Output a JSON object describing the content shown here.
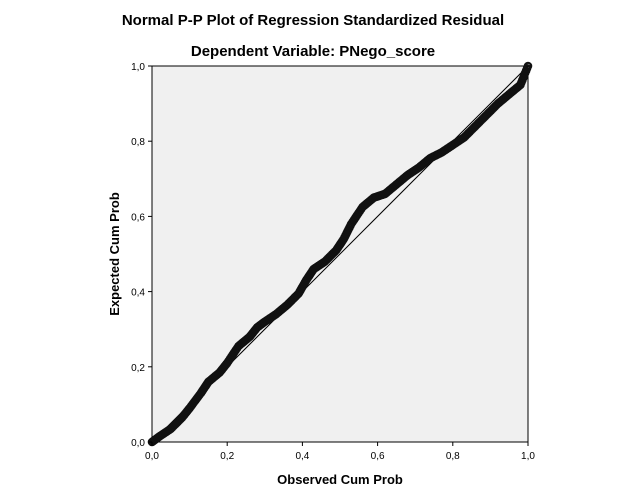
{
  "chart_data": {
    "type": "scatter",
    "title": "Normal P-P Plot of Regression Standardized Residual",
    "subtitle": "Dependent Variable: PNego_score",
    "xlabel": "Observed Cum Prob",
    "ylabel": "Expected Cum Prob",
    "xlim": [
      0,
      1
    ],
    "ylim": [
      0,
      1
    ],
    "x_ticks": [
      "0,0",
      "0,2",
      "0,4",
      "0,6",
      "0,8",
      "1,0"
    ],
    "y_ticks": [
      "0,0",
      "0,2",
      "0,4",
      "0,6",
      "0,8",
      "1,0"
    ],
    "grid": false,
    "reference_line": {
      "from": [
        0,
        0
      ],
      "to": [
        1,
        1
      ]
    },
    "series": [
      {
        "points_curve": [
          [
            0.0,
            0.0
          ],
          [
            0.02,
            0.015
          ],
          [
            0.05,
            0.035
          ],
          [
            0.08,
            0.065
          ],
          [
            0.1,
            0.09
          ],
          [
            0.13,
            0.13
          ],
          [
            0.15,
            0.16
          ],
          [
            0.18,
            0.185
          ],
          [
            0.2,
            0.21
          ],
          [
            0.23,
            0.255
          ],
          [
            0.26,
            0.28
          ],
          [
            0.28,
            0.305
          ],
          [
            0.3,
            0.32
          ],
          [
            0.33,
            0.34
          ],
          [
            0.36,
            0.365
          ],
          [
            0.39,
            0.395
          ],
          [
            0.41,
            0.43
          ],
          [
            0.43,
            0.46
          ],
          [
            0.46,
            0.48
          ],
          [
            0.49,
            0.51
          ],
          [
            0.51,
            0.54
          ],
          [
            0.53,
            0.58
          ],
          [
            0.56,
            0.625
          ],
          [
            0.59,
            0.65
          ],
          [
            0.62,
            0.66
          ],
          [
            0.65,
            0.685
          ],
          [
            0.68,
            0.71
          ],
          [
            0.71,
            0.73
          ],
          [
            0.74,
            0.755
          ],
          [
            0.77,
            0.77
          ],
          [
            0.8,
            0.79
          ],
          [
            0.83,
            0.81
          ],
          [
            0.86,
            0.84
          ],
          [
            0.89,
            0.87
          ],
          [
            0.92,
            0.9
          ],
          [
            0.95,
            0.925
          ],
          [
            0.98,
            0.95
          ],
          [
            1.0,
            1.0
          ]
        ]
      }
    ]
  },
  "colors": {
    "plot_background": "#f0f0f0",
    "marker": "#111111",
    "reference_line": "#000000"
  }
}
